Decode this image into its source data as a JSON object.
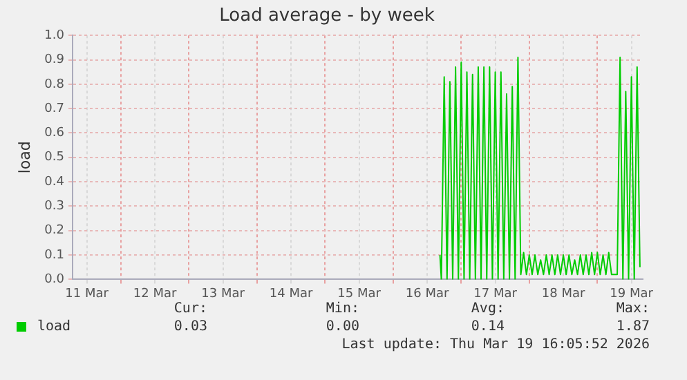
{
  "chart_data": {
    "type": "line",
    "title": "Load average - by week",
    "ylabel": "load",
    "x": [
      "2026-03-16T16:30",
      "2026-03-16T17:00",
      "2026-03-16T18:00",
      "2026-03-16T19:00",
      "2026-03-16T20:00",
      "2026-03-16T21:00",
      "2026-03-16T22:00",
      "2026-03-16T23:00",
      "2026-03-17T00:00",
      "2026-03-17T01:00",
      "2026-03-17T02:00",
      "2026-03-17T03:00",
      "2026-03-17T04:00",
      "2026-03-17T05:00",
      "2026-03-17T06:00",
      "2026-03-17T07:00",
      "2026-03-17T08:00",
      "2026-03-17T09:00",
      "2026-03-17T10:00",
      "2026-03-17T11:00",
      "2026-03-17T12:00",
      "2026-03-17T13:00",
      "2026-03-17T14:00",
      "2026-03-17T15:00",
      "2026-03-17T16:00",
      "2026-03-17T17:00",
      "2026-03-17T18:00",
      "2026-03-17T19:00",
      "2026-03-17T20:00",
      "2026-03-17T21:00",
      "2026-03-17T22:00",
      "2026-03-17T23:00",
      "2026-03-18T00:00",
      "2026-03-18T01:00",
      "2026-03-18T02:00",
      "2026-03-18T03:00",
      "2026-03-18T04:00",
      "2026-03-18T05:00",
      "2026-03-18T06:00",
      "2026-03-18T07:00",
      "2026-03-18T08:00",
      "2026-03-18T09:00",
      "2026-03-18T10:00",
      "2026-03-18T11:00",
      "2026-03-18T12:00",
      "2026-03-18T13:00",
      "2026-03-18T14:00",
      "2026-03-18T15:00",
      "2026-03-18T16:00",
      "2026-03-18T17:00",
      "2026-03-18T18:00",
      "2026-03-18T19:00",
      "2026-03-18T20:00",
      "2026-03-18T21:00",
      "2026-03-18T22:00",
      "2026-03-18T23:00",
      "2026-03-19T00:00",
      "2026-03-19T01:00",
      "2026-03-19T02:00",
      "2026-03-19T03:00",
      "2026-03-19T04:00",
      "2026-03-19T05:00",
      "2026-03-19T06:00",
      "2026-03-19T07:00",
      "2026-03-19T08:00",
      "2026-03-19T09:00",
      "2026-03-19T10:00",
      "2026-03-19T11:00",
      "2026-03-19T12:00",
      "2026-03-19T13:00",
      "2026-03-19T14:00",
      "2026-03-19T15:00"
    ],
    "series": [
      {
        "name": "load",
        "color": "#00cc00",
        "values": [
          0.1,
          0.0,
          0.83,
          0.0,
          0.81,
          0.0,
          0.87,
          0.0,
          0.89,
          0.0,
          0.85,
          0.0,
          0.84,
          0.0,
          0.87,
          0.0,
          0.87,
          0.0,
          0.87,
          0.0,
          0.85,
          0.0,
          0.85,
          0.0,
          0.76,
          0.0,
          0.79,
          0.0,
          0.91,
          0.02,
          0.11,
          0.02,
          0.1,
          0.02,
          0.1,
          0.02,
          0.08,
          0.02,
          0.1,
          0.02,
          0.1,
          0.02,
          0.1,
          0.02,
          0.1,
          0.02,
          0.1,
          0.02,
          0.08,
          0.02,
          0.1,
          0.02,
          0.1,
          0.02,
          0.11,
          0.02,
          0.11,
          0.02,
          0.1,
          0.02,
          0.11,
          0.02,
          0.02,
          0.02,
          0.91,
          0.0,
          0.77,
          0.0,
          0.83,
          0.0,
          0.87,
          0.05
        ]
      }
    ],
    "xlim": [
      "2026-03-11T07:00",
      "2026-03-19T16:00"
    ],
    "xticks": [
      {
        "value": "2026-03-11T12:00",
        "label": "11 Mar"
      },
      {
        "value": "2026-03-12T00:00",
        "label": null
      },
      {
        "value": "2026-03-12T12:00",
        "label": "12 Mar"
      },
      {
        "value": "2026-03-13T00:00",
        "label": null
      },
      {
        "value": "2026-03-13T12:00",
        "label": "13 Mar"
      },
      {
        "value": "2026-03-14T00:00",
        "label": null
      },
      {
        "value": "2026-03-14T12:00",
        "label": "14 Mar"
      },
      {
        "value": "2026-03-15T00:00",
        "label": null
      },
      {
        "value": "2026-03-15T12:00",
        "label": "15 Mar"
      },
      {
        "value": "2026-03-16T00:00",
        "label": null
      },
      {
        "value": "2026-03-16T12:00",
        "label": "16 Mar"
      },
      {
        "value": "2026-03-17T00:00",
        "label": null
      },
      {
        "value": "2026-03-17T12:00",
        "label": "17 Mar"
      },
      {
        "value": "2026-03-18T00:00",
        "label": null
      },
      {
        "value": "2026-03-18T12:00",
        "label": "18 Mar"
      },
      {
        "value": "2026-03-19T00:00",
        "label": null
      },
      {
        "value": "2026-03-19T12:00",
        "label": "19 Mar"
      }
    ],
    "ylim": [
      0,
      1
    ],
    "yticks": [
      {
        "value": 0,
        "label": "0.0"
      },
      {
        "value": 0.1,
        "label": "0.1"
      },
      {
        "value": 0.2,
        "label": "0.2"
      },
      {
        "value": 0.3,
        "label": "0.3"
      },
      {
        "value": 0.4,
        "label": "0.4"
      },
      {
        "value": 0.5,
        "label": "0.5"
      },
      {
        "value": 0.6,
        "label": "0.6"
      },
      {
        "value": 0.7,
        "label": "0.7"
      },
      {
        "value": 0.8,
        "label": "0.8"
      },
      {
        "value": 0.9,
        "label": "0.9"
      },
      {
        "value": 1,
        "label": "1.0"
      }
    ],
    "grid": true,
    "legend": "bottom left",
    "marker": "none",
    "line_style": "solid",
    "annotations": [
      "Cur:",
      "Min:",
      "Avg:",
      "Max:",
      "0.03",
      "0.00",
      "0.14",
      "1.87",
      "Last update: Thu Mar 19 16:05:52 2026"
    ]
  }
}
